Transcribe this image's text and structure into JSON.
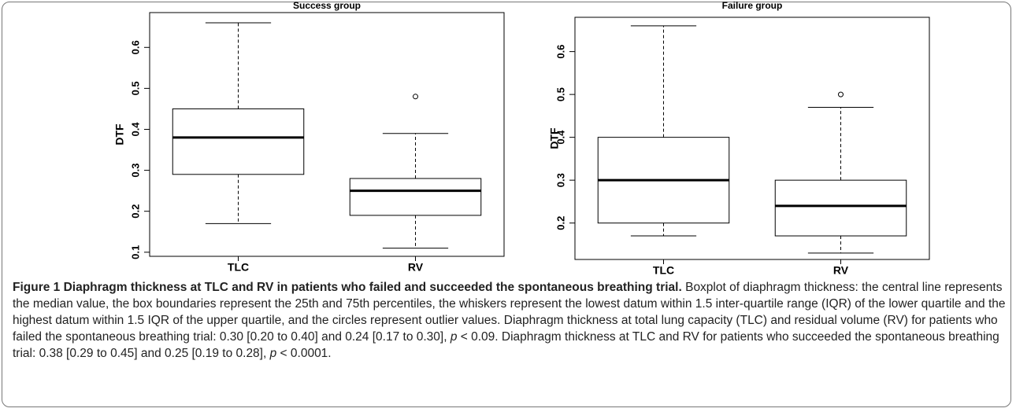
{
  "chart_data": [
    {
      "type": "box",
      "title": "Success group",
      "y_label": "DTF",
      "categories": [
        "TLC",
        "RV"
      ],
      "boxes": [
        {
          "min": 0.17,
          "q1": 0.29,
          "median": 0.38,
          "q3": 0.45,
          "max": 0.66,
          "outliers": []
        },
        {
          "min": 0.11,
          "q1": 0.19,
          "median": 0.25,
          "q3": 0.28,
          "max": 0.39,
          "outliers": [
            0.48
          ]
        }
      ],
      "ylim": [
        0.09,
        0.685
      ],
      "yticks": [
        0.1,
        0.2,
        0.3,
        0.4,
        0.5,
        0.6
      ]
    },
    {
      "type": "box",
      "title": "Failure group",
      "y_label": "DTF",
      "categories": [
        "TLC",
        "RV"
      ],
      "boxes": [
        {
          "min": 0.17,
          "q1": 0.2,
          "median": 0.3,
          "q3": 0.4,
          "max": 0.66,
          "outliers": []
        },
        {
          "min": 0.13,
          "q1": 0.17,
          "median": 0.24,
          "q3": 0.3,
          "max": 0.47,
          "outliers": [
            0.5
          ]
        }
      ],
      "ylim": [
        0.115,
        0.68
      ],
      "yticks": [
        0.2,
        0.3,
        0.4,
        0.5,
        0.6
      ]
    }
  ],
  "caption": {
    "title": "Figure 1 Diaphragm thickness at TLC and RV in patients who failed and succeeded the spontaneous breathing trial.",
    "text": [
      " Boxplot of diaphragm thickness: the central line represents the median value, the box boundaries represent the 25th and 75th percentiles, the whiskers represent the lowest datum within 1.5 inter-quartile range (IQR) of the lower quartile and the highest datum within 1.5 IQR of the upper quartile, and the circles represent outlier values. Diaphragm thickness at total lung capacity (TLC) and residual volume (RV) for patients who failed the spontaneous breathing trial: 0.30 [0.20 to 0.40] and 0.24 [0.17 to 0.30], ",
      "p",
      " < 0.09. Diaphragm thickness at TLC and RV for patients who succeeded the spontaneous breathing trial: 0.38 [0.29 to 0.45] and 0.25 [0.19 to 0.28], ",
      "p",
      " < 0.0001."
    ]
  }
}
